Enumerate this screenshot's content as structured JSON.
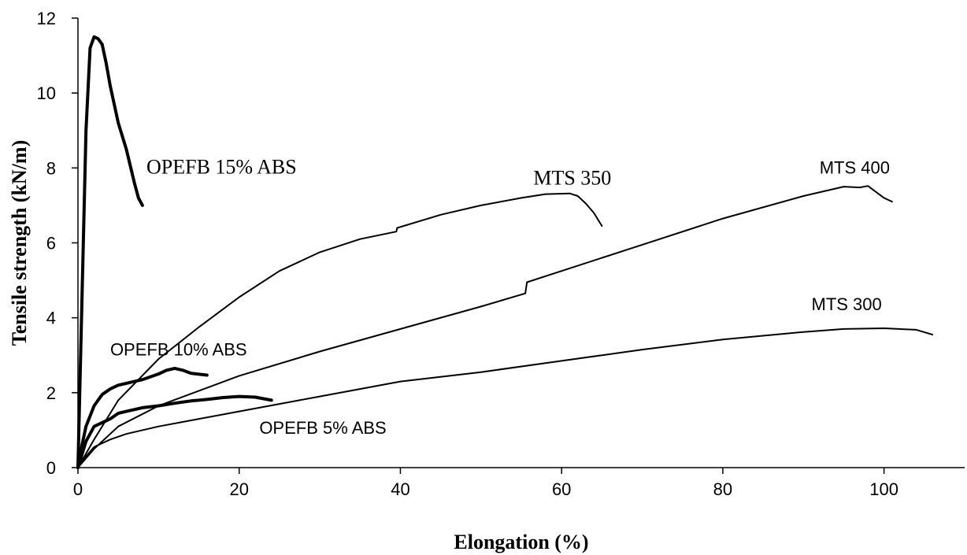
{
  "chart_data": {
    "type": "line",
    "title": "",
    "xlabel": "Elongation (%)",
    "ylabel": "Tensile strength (kN/m)",
    "xlim": [
      0,
      110
    ],
    "ylim": [
      0,
      12
    ],
    "xticks": [
      0,
      20,
      40,
      60,
      80,
      100
    ],
    "yticks": [
      0,
      2,
      4,
      6,
      8,
      10,
      12
    ],
    "grid": false,
    "legend": "none",
    "series": [
      {
        "name": "OPEFB 15% ABS",
        "line_width": "thick",
        "x": [
          0,
          0.5,
          1,
          1.5,
          2,
          2.5,
          3,
          3.5,
          4,
          5,
          6,
          7,
          7.5,
          8
        ],
        "y": [
          0,
          4.5,
          9,
          11.2,
          11.5,
          11.45,
          11.3,
          10.8,
          10.2,
          9.2,
          8.5,
          7.6,
          7.2,
          7.0
        ]
      },
      {
        "name": "OPEFB 10% ABS",
        "line_width": "thick",
        "x": [
          0,
          0.5,
          1,
          2,
          3,
          4,
          5,
          6,
          8,
          10,
          11,
          12,
          13,
          14,
          16
        ],
        "y": [
          0,
          0.6,
          1.1,
          1.65,
          1.95,
          2.1,
          2.2,
          2.25,
          2.35,
          2.5,
          2.6,
          2.65,
          2.6,
          2.52,
          2.47
        ]
      },
      {
        "name": "OPEFB 5% ABS",
        "line_width": "thick",
        "x": [
          0,
          1,
          2,
          4,
          5,
          6,
          8,
          10,
          12,
          14,
          16,
          18,
          20,
          22,
          24
        ],
        "y": [
          0,
          0.7,
          1.1,
          1.3,
          1.45,
          1.5,
          1.6,
          1.65,
          1.72,
          1.78,
          1.82,
          1.87,
          1.9,
          1.88,
          1.8
        ]
      },
      {
        "name": "MTS 350",
        "line_width": "thin",
        "x": [
          0,
          2,
          5,
          10,
          15,
          20,
          25,
          30,
          35,
          39.5,
          39.6,
          45,
          50,
          55,
          58,
          61,
          62,
          63,
          64,
          65
        ],
        "y": [
          0,
          0.75,
          1.8,
          2.9,
          3.75,
          4.55,
          5.25,
          5.75,
          6.1,
          6.3,
          6.4,
          6.75,
          7.0,
          7.2,
          7.3,
          7.32,
          7.25,
          7.05,
          6.8,
          6.45
        ]
      },
      {
        "name": "MTS 400",
        "line_width": "thin",
        "x": [
          0,
          2,
          5,
          10,
          20,
          30,
          40,
          50,
          55.5,
          55.7,
          60,
          70,
          80,
          90,
          95,
          97,
          98,
          100,
          101
        ],
        "y": [
          0,
          0.5,
          1.1,
          1.65,
          2.45,
          3.1,
          3.7,
          4.3,
          4.65,
          4.95,
          5.25,
          5.95,
          6.65,
          7.25,
          7.5,
          7.48,
          7.52,
          7.2,
          7.1
        ]
      },
      {
        "name": "MTS 300",
        "line_width": "thin",
        "x": [
          0,
          1,
          2,
          4,
          6,
          10,
          20,
          30,
          40,
          50,
          60,
          70,
          80,
          90,
          95,
          100,
          104,
          106
        ],
        "y": [
          0,
          0.3,
          0.55,
          0.75,
          0.9,
          1.1,
          1.5,
          1.9,
          2.3,
          2.55,
          2.85,
          3.15,
          3.42,
          3.62,
          3.7,
          3.72,
          3.68,
          3.55
        ]
      }
    ],
    "annotations": [
      {
        "text": "OPEFB 15% ABS",
        "x": 8.5,
        "y": 7.85,
        "style": "serif"
      },
      {
        "text": "MTS 350",
        "x": 56.5,
        "y": 7.55,
        "style": "serif"
      },
      {
        "text": "MTS 400",
        "x": 92,
        "y": 7.85,
        "style": "sans"
      },
      {
        "text": "MTS 300",
        "x": 91,
        "y": 4.2,
        "style": "sans"
      },
      {
        "text": "OPEFB 10% ABS",
        "x": 4,
        "y": 3.0,
        "style": "sans"
      },
      {
        "text": "OPEFB 5% ABS",
        "x": 22.5,
        "y": 0.9,
        "style": "sans"
      }
    ]
  }
}
